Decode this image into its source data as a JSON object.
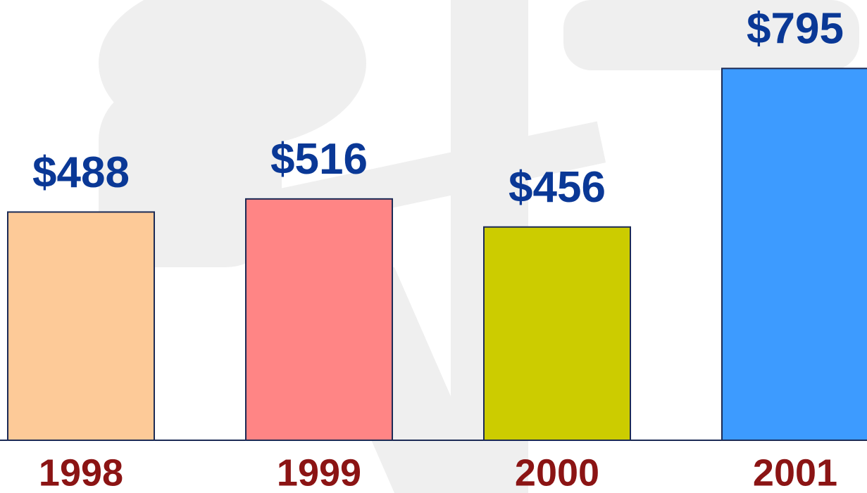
{
  "chart_data": {
    "type": "bar",
    "categories": [
      "1998",
      "1999",
      "2000",
      "2001"
    ],
    "values": [
      488,
      516,
      456,
      795
    ],
    "value_labels": [
      "$488",
      "$516",
      "$456",
      "$795"
    ],
    "colors": [
      "#fdca98",
      "#ff8585",
      "#cccc00",
      "#3d9bff"
    ],
    "ylim": [
      0,
      800
    ]
  }
}
